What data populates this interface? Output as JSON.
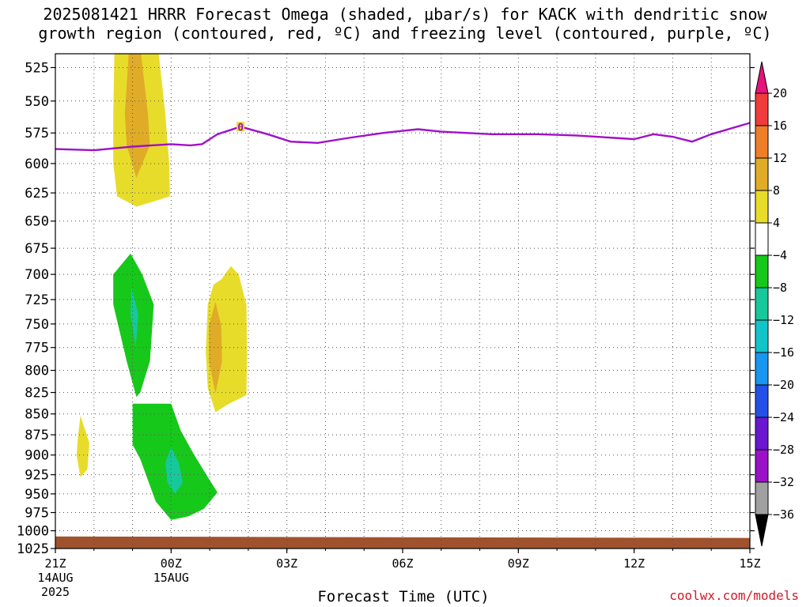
{
  "title": {
    "line1": "2025081421 HRRR Forecast Omega (shaded, μbar/s) for KACK with dendritic snow",
    "line2": "growth region (contoured, red, ºC) and freezing level (contoured, purple, ºC)"
  },
  "credit": "coolwx.com/models",
  "chart_data": {
    "type": "contour",
    "title": "2025081421 HRRR Forecast Omega (shaded, μbar/s) for KACK with dendritic snow growth region (contoured, red, ºC) and freezing level (contoured, purple, ºC)",
    "xlabel": "Forecast Time (UTC)",
    "ylabel": "",
    "x_ticks": [
      {
        "h": 0,
        "label": "21Z",
        "sub1": "14AUG",
        "sub2": "2025"
      },
      {
        "h": 3,
        "label": "00Z",
        "sub1": "15AUG",
        "sub2": ""
      },
      {
        "h": 6,
        "label": "03Z",
        "sub1": "",
        "sub2": ""
      },
      {
        "h": 9,
        "label": "06Z",
        "sub1": "",
        "sub2": ""
      },
      {
        "h": 12,
        "label": "09Z",
        "sub1": "",
        "sub2": ""
      },
      {
        "h": 15,
        "label": "12Z",
        "sub1": "",
        "sub2": ""
      },
      {
        "h": 18,
        "label": "15Z",
        "sub1": "",
        "sub2": ""
      }
    ],
    "xlim_hours": [
      0,
      18
    ],
    "y_ticks": [
      525,
      550,
      575,
      600,
      625,
      650,
      675,
      700,
      725,
      750,
      775,
      800,
      825,
      850,
      875,
      900,
      925,
      950,
      975,
      1000,
      1025
    ],
    "ylim_hPa": [
      515,
      1025
    ],
    "y_scale": "log",
    "grid": true,
    "colorbar": {
      "labels": [
        "20",
        "16",
        "12",
        "8",
        "4",
        "-4",
        "-8",
        "-12",
        "-16",
        "-20",
        "-24",
        "-28",
        "-32",
        "-36"
      ],
      "colors": [
        "#e8127a",
        "#f03c3c",
        "#f07d28",
        "#e0ac28",
        "#e8dc2a",
        "#ffffff",
        "#16c81a",
        "#16c89a",
        "#10c4c8",
        "#1896f0",
        "#2450e8",
        "#6a18d0",
        "#9a12c8",
        "#a0a0a0",
        "#000000"
      ]
    },
    "shaded_regions": [
      {
        "level": "4 to 8",
        "color": "#e8dc2a",
        "polygon": [
          [
            1.53,
            515
          ],
          [
            2.68,
            515
          ],
          [
            2.85,
            560
          ],
          [
            2.95,
            600
          ],
          [
            2.97,
            628
          ],
          [
            2.5,
            633
          ],
          [
            2.1,
            637
          ],
          [
            1.6,
            628
          ],
          [
            1.5,
            600
          ],
          [
            1.5,
            560
          ]
        ]
      },
      {
        "level": "8 to 12",
        "color": "#e0ac28",
        "polygon": [
          [
            1.9,
            515
          ],
          [
            2.22,
            515
          ],
          [
            2.4,
            560
          ],
          [
            2.45,
            585
          ],
          [
            2.1,
            612
          ],
          [
            1.85,
            585
          ],
          [
            1.8,
            560
          ]
        ]
      },
      {
        "level": "4 to 8",
        "color": "#e8dc2a",
        "polygon": [
          [
            4.3,
            705
          ],
          [
            4.55,
            692
          ],
          [
            4.75,
            700
          ],
          [
            4.95,
            730
          ],
          [
            4.97,
            780
          ],
          [
            4.95,
            828
          ],
          [
            4.5,
            838
          ],
          [
            4.15,
            848
          ],
          [
            3.95,
            820
          ],
          [
            3.9,
            780
          ],
          [
            3.95,
            730
          ],
          [
            4.1,
            710
          ]
        ]
      },
      {
        "level": "8 to 12",
        "color": "#e0ac28",
        "polygon": [
          [
            4.15,
            727
          ],
          [
            4.3,
            752
          ],
          [
            4.32,
            790
          ],
          [
            4.15,
            826
          ],
          [
            3.98,
            790
          ],
          [
            3.98,
            752
          ]
        ]
      },
      {
        "level": "4 to 8",
        "color": "#e8dc2a",
        "polygon": [
          [
            0.65,
            852
          ],
          [
            0.88,
            885
          ],
          [
            0.83,
            918
          ],
          [
            0.65,
            928
          ],
          [
            0.55,
            900
          ],
          [
            0.58,
            880
          ]
        ]
      },
      {
        "level": "-8 to -4",
        "color": "#16c81a",
        "polygon": [
          [
            1.95,
            680
          ],
          [
            2.25,
            700
          ],
          [
            2.55,
            730
          ],
          [
            2.45,
            790
          ],
          [
            2.2,
            825
          ],
          [
            2.1,
            830
          ],
          [
            1.85,
            790
          ],
          [
            1.5,
            730
          ],
          [
            1.5,
            700
          ]
        ]
      },
      {
        "level": "-12 to -8",
        "color": "#16c89a",
        "polygon": [
          [
            1.97,
            712
          ],
          [
            2.15,
            740
          ],
          [
            2.08,
            775
          ],
          [
            1.95,
            740
          ]
        ]
      },
      {
        "level": "-8 to -4",
        "color": "#16c81a",
        "polygon": [
          [
            2.0,
            838
          ],
          [
            3.0,
            838
          ],
          [
            3.25,
            870
          ],
          [
            3.6,
            900
          ],
          [
            4.0,
            932
          ],
          [
            4.2,
            948
          ],
          [
            3.85,
            970
          ],
          [
            3.45,
            980
          ],
          [
            3.0,
            985
          ],
          [
            2.6,
            960
          ],
          [
            2.2,
            905
          ],
          [
            2.0,
            887
          ]
        ]
      },
      {
        "level": "-12 to -8",
        "color": "#16c89a",
        "polygon": [
          [
            3.0,
            890
          ],
          [
            3.2,
            910
          ],
          [
            3.3,
            935
          ],
          [
            3.1,
            950
          ],
          [
            2.9,
            935
          ],
          [
            2.85,
            910
          ]
        ]
      },
      {
        "level": "surface",
        "color": "#a0522d",
        "polygon": [
          [
            0,
            1008
          ],
          [
            18,
            1010
          ],
          [
            18,
            1025
          ],
          [
            0,
            1025
          ]
        ]
      }
    ],
    "freezing_level": {
      "name": "freezing level",
      "color": "#a010c8",
      "x": [
        0,
        1,
        2,
        2.5,
        3,
        3.5,
        3.8,
        4.2,
        4.8,
        5.5,
        6.1,
        6.8,
        7.6,
        8.5,
        9.4,
        10,
        11.3,
        12.5,
        13.5,
        14.5,
        15,
        15.5,
        16,
        16.5,
        17,
        18
      ],
      "y": [
        588,
        589,
        586,
        585,
        584,
        585,
        584,
        576,
        570,
        576,
        582,
        583,
        579,
        575,
        572,
        574,
        576,
        576,
        577,
        579,
        580,
        576,
        578,
        582,
        576,
        567
      ]
    },
    "contour_label": {
      "x": 4.8,
      "y": 570,
      "text": "0"
    }
  }
}
